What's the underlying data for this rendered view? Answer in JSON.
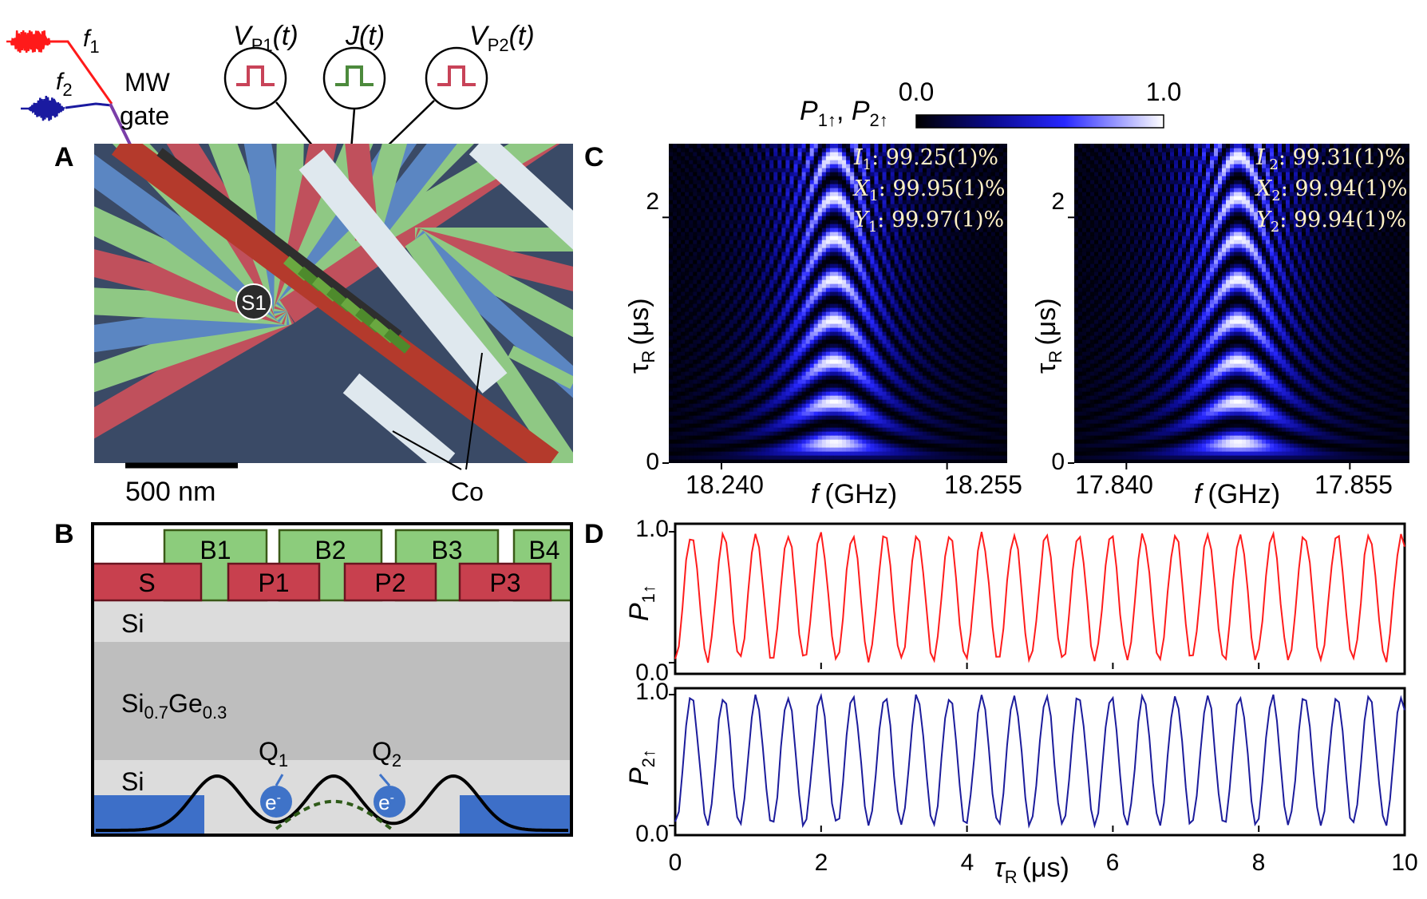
{
  "panel_labels": {
    "a": "A",
    "b": "B",
    "c": "C",
    "d": "D"
  },
  "panel_a": {
    "sem_labels": {
      "sensor": "S1",
      "scale": "500 nm",
      "magnet": "Co"
    },
    "gate_symbols": {
      "vp1_main": "V",
      "vp1_sub": "P1",
      "vp1_arg": "(t)",
      "j_main": "J",
      "j_arg": "(t)",
      "vp2_main": "V",
      "vp2_sub": "P2",
      "vp2_arg": "(t)"
    },
    "mw_labels": {
      "line1": "MW",
      "line2": "gate"
    },
    "freq_symbols": {
      "f_main": "f",
      "f1_sub": "1",
      "f2_sub": "2"
    },
    "colors": {
      "red_gate": "#c0505c",
      "green_gate": "#8fc884",
      "blue_gate": "#5b86c2",
      "screening": "#b43a2c",
      "co_magnet": "#dfe8ee",
      "mw_f1": "#ff1a1a",
      "mw_f2": "#1a1aa0"
    }
  },
  "panel_b": {
    "barrier_gates": [
      "B1",
      "B2",
      "B3",
      "B4"
    ],
    "plunger_gates": [
      "S",
      "P1",
      "P2",
      "P3"
    ],
    "layers": {
      "top_si": "Si",
      "buffer_main": "Si",
      "buffer_sub1": "0.7",
      "buffer_mid": "Ge",
      "buffer_sub2": "0.3",
      "bottom_si": "Si"
    },
    "qubits": [
      {
        "main": "Q",
        "sub": "1"
      },
      {
        "main": "Q",
        "sub": "2"
      }
    ],
    "electron_label": "e",
    "electron_charge": "-",
    "colors": {
      "plunger": "#c8404e",
      "barrier": "#8ccc7c",
      "si": "#dcdcdc",
      "sige": "#bebebe",
      "reservoir": "#3d6fc8",
      "electron": "#3f73c8"
    }
  },
  "panel_c": {
    "colorbar": {
      "title_main1": "P",
      "title_sub1": "1↑",
      "title_sep": ", ",
      "title_main2": "P",
      "title_sub2": "2↑",
      "min_label": "0.0",
      "max_label": "1.0",
      "colormap": [
        "#000000",
        "#0a0a8c",
        "#2828ff",
        "#ffffff"
      ]
    },
    "plots": [
      {
        "ylabel_main": "τ",
        "ylabel_sub": "R",
        "ylabel_unit": "(μs)",
        "xlabel_main": "f",
        "xlabel_unit": "(GHz)",
        "xticks": [
          "18.240",
          "18.255"
        ],
        "yticks": [
          "0",
          "2"
        ],
        "fidelities": [
          {
            "name": "I",
            "sub": "1",
            "value": ": 99.25(1)%"
          },
          {
            "name": "X",
            "sub": "1",
            "value": ": 99.95(1)%"
          },
          {
            "name": "Y",
            "sub": "1",
            "value": ": 99.97(1)%"
          }
        ]
      },
      {
        "ylabel_main": "τ",
        "ylabel_sub": "R",
        "ylabel_unit": "(μs)",
        "xlabel_main": "f",
        "xlabel_unit": "(GHz)",
        "xticks": [
          "17.840",
          "17.855"
        ],
        "yticks": [
          "0",
          "2"
        ],
        "fidelities": [
          {
            "name": "I",
            "sub": " 2",
            "value": ": 99.31(1)%"
          },
          {
            "name": "X",
            "sub": "2",
            "value": ": 99.94(1)%"
          },
          {
            "name": "Y",
            "sub": "2",
            "value": ": 99.94(1)%"
          }
        ]
      }
    ]
  },
  "panel_d": {
    "plots": [
      {
        "ylabel_main": "P",
        "ylabel_sub": "1↑",
        "yticks": [
          "0.0",
          "1.0"
        ],
        "color": "#ff1c1c"
      },
      {
        "ylabel_main": "P",
        "ylabel_sub": "2↑",
        "yticks": [
          "0.0",
          "1.0"
        ],
        "color": "#1c1c9c"
      }
    ],
    "xlabel_main": "τ",
    "xlabel_sub": "R",
    "xlabel_unit": "(μs)",
    "xticks": [
      "0",
      "2",
      "4",
      "6",
      "8",
      "10"
    ]
  },
  "chart_data": [
    {
      "type": "heatmap",
      "panel": "C-left",
      "xlim": [
        18.2365,
        18.259
      ],
      "ylim": [
        0,
        2.6
      ],
      "center_frequency": 18.2475,
      "rabi_frequency_mhz": 3.0,
      "colorbar_range": [
        0.0,
        1.0
      ]
    },
    {
      "type": "heatmap",
      "panel": "C-right",
      "xlim": [
        17.8365,
        17.859
      ],
      "ylim": [
        0,
        2.6
      ],
      "center_frequency": 17.8475,
      "rabi_frequency_mhz": 3.0,
      "colorbar_range": [
        0.0,
        1.0
      ]
    },
    {
      "type": "line",
      "panel": "D-top",
      "xlim": [
        0,
        10
      ],
      "ylim": [
        0,
        1.0
      ],
      "rabi_frequency_mhz": 2.26,
      "amplitude_range": [
        0.02,
        0.98
      ],
      "x_range": [
        0,
        10
      ],
      "n_samples": 200
    },
    {
      "type": "line",
      "panel": "D-bottom",
      "xlim": [
        0,
        10
      ],
      "ylim": [
        0,
        1.0
      ],
      "rabi_frequency_mhz": 2.26,
      "amplitude_range": [
        0.0,
        0.99
      ],
      "x_range": [
        0,
        10
      ],
      "n_samples": 200
    }
  ]
}
